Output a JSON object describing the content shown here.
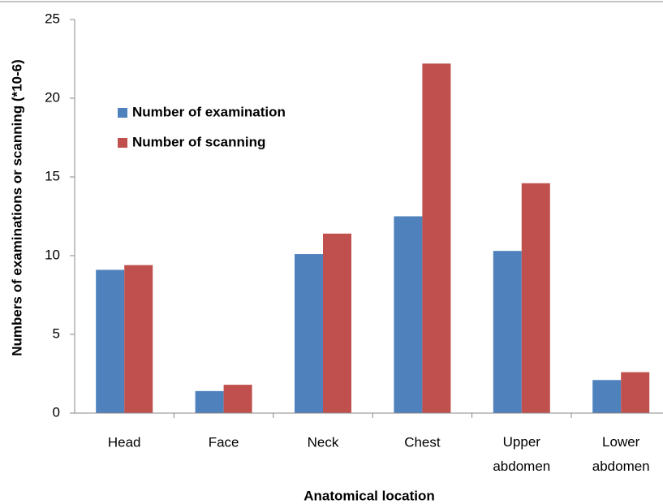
{
  "chart_data": {
    "type": "bar",
    "x_label": "Anatomical location",
    "y_label": "Numbers of examinations or scanning  (*10-6)",
    "categories": [
      "Head",
      "Face",
      "Neck",
      "Chest",
      "Upper abdomen",
      "Lower abdomen"
    ],
    "series": [
      {
        "name": "Number of examination",
        "color": "#4f81bd",
        "values": [
          9.1,
          1.4,
          10.1,
          12.5,
          10.3,
          2.1
        ]
      },
      {
        "name": "Number of scanning",
        "color": "#c0504d",
        "values": [
          9.4,
          1.8,
          11.4,
          22.2,
          14.6,
          2.6
        ]
      }
    ],
    "ylim": [
      0,
      25
    ],
    "yticks": [
      0,
      5,
      10,
      15,
      20,
      25
    ],
    "legend": "upper left"
  }
}
